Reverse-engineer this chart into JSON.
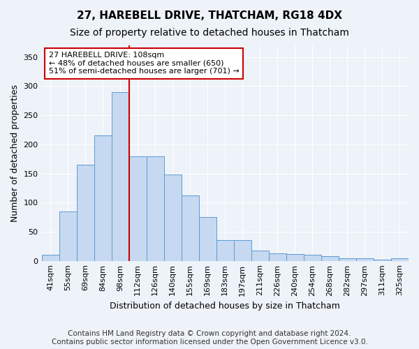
{
  "title": "27, HAREBELL DRIVE, THATCHAM, RG18 4DX",
  "subtitle": "Size of property relative to detached houses in Thatcham",
  "xlabel": "Distribution of detached houses by size in Thatcham",
  "ylabel": "Number of detached properties",
  "categories": [
    "41sqm",
    "55sqm",
    "69sqm",
    "84sqm",
    "98sqm",
    "112sqm",
    "126sqm",
    "140sqm",
    "155sqm",
    "169sqm",
    "183sqm",
    "197sqm",
    "211sqm",
    "226sqm",
    "240sqm",
    "254sqm",
    "268sqm",
    "282sqm",
    "297sqm",
    "311sqm",
    "325sqm"
  ],
  "values": [
    10,
    85,
    165,
    215,
    290,
    180,
    180,
    148,
    112,
    75,
    36,
    36,
    17,
    13,
    12,
    10,
    8,
    5,
    5,
    2,
    4
  ],
  "bar_color": "#c6d9f0",
  "bar_edge_color": "#5b9bd5",
  "vline_x_index": 4,
  "vline_color": "#cc0000",
  "annotation_text": "27 HAREBELL DRIVE: 108sqm\n← 48% of detached houses are smaller (650)\n51% of semi-detached houses are larger (701) →",
  "annotation_box_color": "#ffffff",
  "annotation_box_edge": "#cc0000",
  "ylim": [
    0,
    370
  ],
  "yticks": [
    0,
    50,
    100,
    150,
    200,
    250,
    300,
    350
  ],
  "footer_line1": "Contains HM Land Registry data © Crown copyright and database right 2024.",
  "footer_line2": "Contains public sector information licensed under the Open Government Licence v3.0.",
  "background_color": "#eef2f9",
  "grid_color": "#ffffff",
  "title_fontsize": 11,
  "subtitle_fontsize": 10,
  "label_fontsize": 9,
  "tick_fontsize": 8,
  "footer_fontsize": 7.5
}
